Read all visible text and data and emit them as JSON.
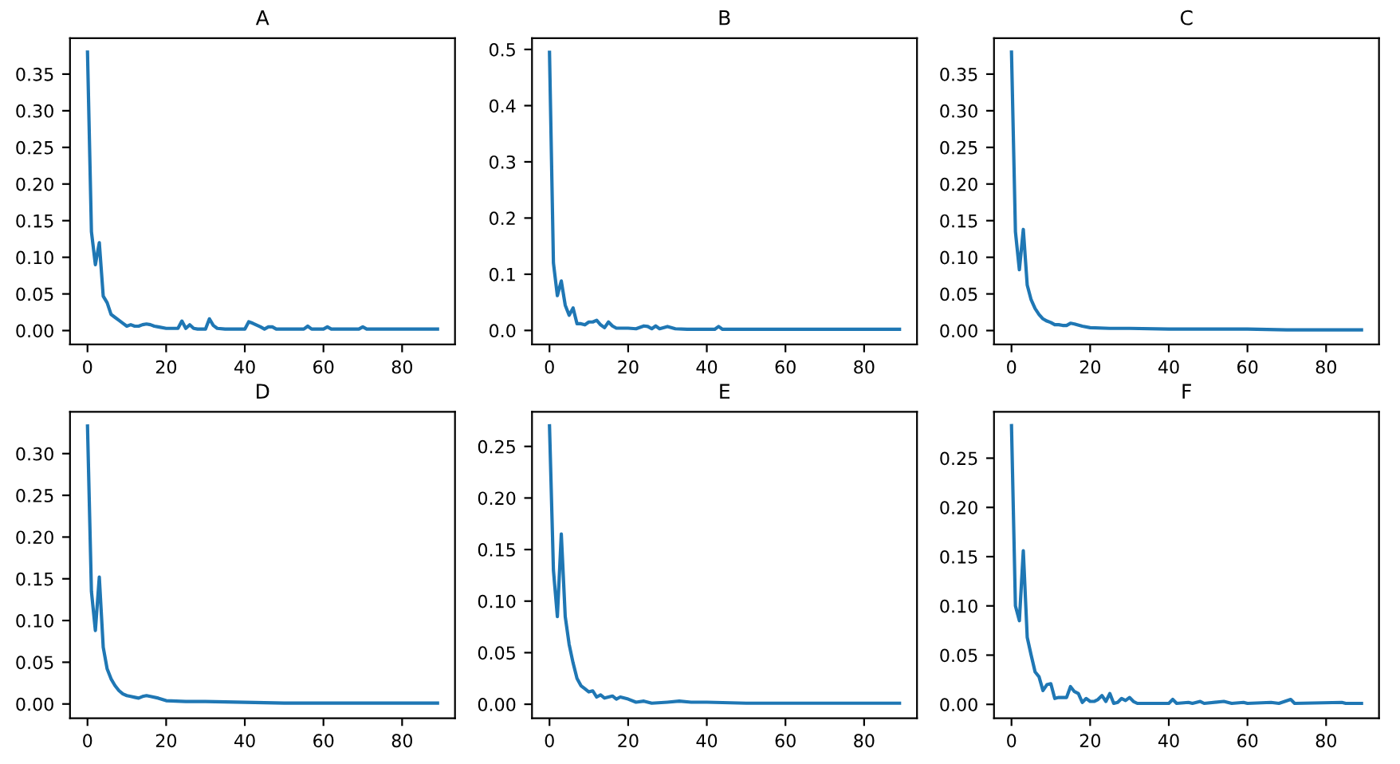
{
  "chart_data": [
    {
      "type": "line",
      "title": "A",
      "xlim": [
        -4.45,
        93.45
      ],
      "xticks": [
        0,
        20,
        40,
        60,
        80
      ],
      "ylim": [
        -0.019,
        0.399
      ],
      "yticks": [
        {
          "value": 0,
          "label": "0.00"
        },
        {
          "value": 0.05,
          "label": "0.05"
        },
        {
          "value": 0.1,
          "label": "0.10"
        },
        {
          "value": 0.15,
          "label": "0.15"
        },
        {
          "value": 0.2,
          "label": "0.20"
        },
        {
          "value": 0.25,
          "label": "0.25"
        },
        {
          "value": 0.3,
          "label": "0.30"
        },
        {
          "value": 0.35,
          "label": "0.35"
        }
      ],
      "series": [
        {
          "color": "#1f77b4",
          "x": [
            0,
            1,
            2,
            3,
            4,
            5,
            6,
            7,
            8,
            9,
            10,
            11,
            12,
            13,
            14,
            15,
            16,
            17,
            18,
            20,
            22,
            23,
            24,
            25,
            26,
            27,
            28,
            30,
            31,
            32,
            33,
            35,
            38,
            40,
            41,
            42,
            44,
            45,
            46,
            47,
            48,
            55,
            56,
            57,
            60,
            61,
            62,
            69,
            70,
            71,
            89
          ],
          "values": [
            0.38,
            0.135,
            0.09,
            0.12,
            0.047,
            0.038,
            0.022,
            0.018,
            0.014,
            0.01,
            0.006,
            0.008,
            0.006,
            0.006,
            0.008,
            0.009,
            0.008,
            0.006,
            0.005,
            0.003,
            0.003,
            0.003,
            0.013,
            0.003,
            0.008,
            0.003,
            0.002,
            0.002,
            0.016,
            0.007,
            0.003,
            0.002,
            0.002,
            0.002,
            0.012,
            0.01,
            0.005,
            0.002,
            0.005,
            0.005,
            0.002,
            0.002,
            0.006,
            0.002,
            0.002,
            0.005,
            0.002,
            0.002,
            0.005,
            0.002,
            0.002
          ]
        }
      ]
    },
    {
      "type": "line",
      "title": "B",
      "xlim": [
        -4.45,
        93.45
      ],
      "xticks": [
        0,
        20,
        40,
        60,
        80
      ],
      "ylim": [
        -0.025,
        0.52
      ],
      "yticks": [
        {
          "value": 0,
          "label": "0.0"
        },
        {
          "value": 0.1,
          "label": "0.1"
        },
        {
          "value": 0.2,
          "label": "0.2"
        },
        {
          "value": 0.3,
          "label": "0.3"
        },
        {
          "value": 0.4,
          "label": "0.4"
        },
        {
          "value": 0.5,
          "label": "0.5"
        }
      ],
      "series": [
        {
          "color": "#1f77b4",
          "x": [
            0,
            1,
            2,
            3,
            4,
            5,
            6,
            7,
            8,
            9,
            10,
            11,
            12,
            13,
            14,
            15,
            16,
            17,
            20,
            22,
            24,
            25,
            26,
            27,
            28,
            30,
            32,
            35,
            42,
            43,
            44,
            89
          ],
          "values": [
            0.495,
            0.12,
            0.062,
            0.088,
            0.045,
            0.027,
            0.04,
            0.012,
            0.012,
            0.01,
            0.015,
            0.015,
            0.018,
            0.01,
            0.005,
            0.015,
            0.008,
            0.004,
            0.004,
            0.003,
            0.008,
            0.007,
            0.003,
            0.008,
            0.003,
            0.007,
            0.003,
            0.002,
            0.002,
            0.007,
            0.002,
            0.002
          ]
        }
      ]
    },
    {
      "type": "line",
      "title": "C",
      "xlim": [
        -4.45,
        93.45
      ],
      "xticks": [
        0,
        20,
        40,
        60,
        80
      ],
      "ylim": [
        -0.019,
        0.399
      ],
      "yticks": [
        {
          "value": 0,
          "label": "0.00"
        },
        {
          "value": 0.05,
          "label": "0.05"
        },
        {
          "value": 0.1,
          "label": "0.10"
        },
        {
          "value": 0.15,
          "label": "0.15"
        },
        {
          "value": 0.2,
          "label": "0.20"
        },
        {
          "value": 0.25,
          "label": "0.25"
        },
        {
          "value": 0.3,
          "label": "0.30"
        },
        {
          "value": 0.35,
          "label": "0.35"
        }
      ],
      "series": [
        {
          "color": "#1f77b4",
          "x": [
            0,
            1,
            2,
            3,
            4,
            5,
            6,
            7,
            8,
            9,
            10,
            11,
            12,
            13,
            14,
            15,
            16,
            18,
            20,
            25,
            30,
            40,
            50,
            60,
            70,
            89
          ],
          "values": [
            0.38,
            0.135,
            0.083,
            0.138,
            0.062,
            0.042,
            0.03,
            0.022,
            0.016,
            0.013,
            0.011,
            0.008,
            0.008,
            0.007,
            0.007,
            0.01,
            0.009,
            0.006,
            0.004,
            0.003,
            0.003,
            0.002,
            0.002,
            0.002,
            0.001,
            0.001
          ]
        }
      ]
    },
    {
      "type": "line",
      "title": "D",
      "xlim": [
        -4.45,
        93.45
      ],
      "xticks": [
        0,
        20,
        40,
        60,
        80
      ],
      "ylim": [
        -0.017,
        0.35
      ],
      "yticks": [
        {
          "value": 0,
          "label": "0.00"
        },
        {
          "value": 0.05,
          "label": "0.05"
        },
        {
          "value": 0.1,
          "label": "0.10"
        },
        {
          "value": 0.15,
          "label": "0.15"
        },
        {
          "value": 0.2,
          "label": "0.20"
        },
        {
          "value": 0.25,
          "label": "0.25"
        },
        {
          "value": 0.3,
          "label": "0.30"
        }
      ],
      "series": [
        {
          "color": "#1f77b4",
          "x": [
            0,
            1,
            2,
            3,
            4,
            5,
            6,
            7,
            8,
            9,
            10,
            11,
            12,
            13,
            14,
            15,
            16,
            18,
            20,
            25,
            30,
            40,
            50,
            60,
            70,
            80,
            89
          ],
          "values": [
            0.333,
            0.135,
            0.088,
            0.152,
            0.068,
            0.042,
            0.03,
            0.022,
            0.016,
            0.012,
            0.01,
            0.009,
            0.008,
            0.007,
            0.009,
            0.01,
            0.009,
            0.007,
            0.004,
            0.003,
            0.003,
            0.002,
            0.001,
            0.001,
            0.001,
            0.001,
            0.001
          ]
        }
      ]
    },
    {
      "type": "line",
      "title": "E",
      "xlim": [
        -4.45,
        93.45
      ],
      "xticks": [
        0,
        20,
        40,
        60,
        80
      ],
      "ylim": [
        -0.0135,
        0.2835
      ],
      "yticks": [
        {
          "value": 0,
          "label": "0.00"
        },
        {
          "value": 0.05,
          "label": "0.05"
        },
        {
          "value": 0.1,
          "label": "0.10"
        },
        {
          "value": 0.15,
          "label": "0.15"
        },
        {
          "value": 0.2,
          "label": "0.20"
        },
        {
          "value": 0.25,
          "label": "0.25"
        }
      ],
      "series": [
        {
          "color": "#1f77b4",
          "x": [
            0,
            1,
            2,
            3,
            4,
            5,
            6,
            7,
            8,
            9,
            10,
            11,
            12,
            13,
            14,
            15,
            16,
            17,
            18,
            19,
            20,
            22,
            24,
            26,
            30,
            33,
            36,
            40,
            50,
            60,
            70,
            80,
            89
          ],
          "values": [
            0.27,
            0.13,
            0.085,
            0.165,
            0.085,
            0.058,
            0.04,
            0.025,
            0.018,
            0.015,
            0.012,
            0.013,
            0.007,
            0.009,
            0.006,
            0.007,
            0.008,
            0.005,
            0.007,
            0.006,
            0.005,
            0.002,
            0.003,
            0.001,
            0.002,
            0.003,
            0.002,
            0.002,
            0.001,
            0.001,
            0.001,
            0.001,
            0.001
          ]
        }
      ]
    },
    {
      "type": "line",
      "title": "F",
      "xlim": [
        -4.45,
        93.45
      ],
      "xticks": [
        0,
        20,
        40,
        60,
        80
      ],
      "ylim": [
        -0.014,
        0.297
      ],
      "yticks": [
        {
          "value": 0,
          "label": "0.00"
        },
        {
          "value": 0.05,
          "label": "0.05"
        },
        {
          "value": 0.1,
          "label": "0.10"
        },
        {
          "value": 0.15,
          "label": "0.15"
        },
        {
          "value": 0.2,
          "label": "0.20"
        },
        {
          "value": 0.25,
          "label": "0.25"
        }
      ],
      "series": [
        {
          "color": "#1f77b4",
          "x": [
            0,
            1,
            2,
            3,
            4,
            5,
            6,
            7,
            8,
            9,
            10,
            11,
            12,
            13,
            14,
            15,
            16,
            17,
            18,
            19,
            20,
            21,
            22,
            23,
            24,
            25,
            26,
            27,
            28,
            29,
            30,
            31,
            32,
            40,
            41,
            42,
            45,
            46,
            48,
            49,
            54,
            56,
            59,
            60,
            66,
            68,
            71,
            72,
            84,
            85,
            89
          ],
          "values": [
            0.283,
            0.1,
            0.085,
            0.156,
            0.068,
            0.05,
            0.033,
            0.028,
            0.014,
            0.02,
            0.021,
            0.006,
            0.007,
            0.007,
            0.007,
            0.018,
            0.013,
            0.011,
            0.002,
            0.006,
            0.003,
            0.003,
            0.005,
            0.009,
            0.003,
            0.011,
            0.001,
            0.002,
            0.006,
            0.004,
            0.007,
            0.003,
            0.001,
            0.001,
            0.005,
            0.001,
            0.002,
            0.001,
            0.003,
            0.001,
            0.003,
            0.001,
            0.002,
            0.001,
            0.002,
            0.001,
            0.005,
            0.001,
            0.002,
            0.001,
            0.001
          ]
        }
      ]
    }
  ]
}
